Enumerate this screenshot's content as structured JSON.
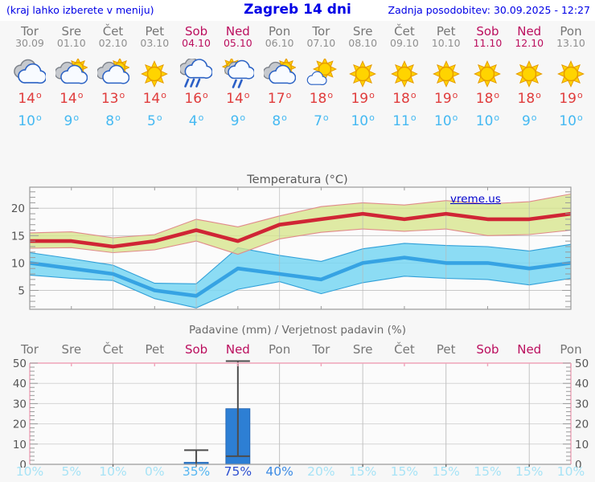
{
  "header": {
    "note": "(kraj lahko izberete v meniju)",
    "title": "Zagreb 14 dni",
    "updated": "Zadnja posodobitev: 30.09.2025 - 12:27"
  },
  "watermark": "vreme.us",
  "days": [
    {
      "name": "Tor",
      "date": "30.09",
      "weekend": false,
      "icon": "cloudy",
      "max_label": "14",
      "min_label": "10",
      "prob_label": "10%",
      "prob_color": "#a7e3f6"
    },
    {
      "name": "Sre",
      "date": "01.10",
      "weekend": false,
      "icon": "partly",
      "max_label": "14",
      "min_label": "9",
      "prob_label": "5%",
      "prob_color": "#a7e3f6"
    },
    {
      "name": "Čet",
      "date": "02.10",
      "weekend": false,
      "icon": "partly",
      "max_label": "13",
      "min_label": "8",
      "prob_label": "10%",
      "prob_color": "#a7e3f6"
    },
    {
      "name": "Pet",
      "date": "03.10",
      "weekend": false,
      "icon": "sunny",
      "max_label": "14",
      "min_label": "5",
      "prob_label": "0%",
      "prob_color": "#a7e3f6"
    },
    {
      "name": "Sob",
      "date": "04.10",
      "weekend": true,
      "icon": "rain",
      "max_label": "16",
      "min_label": "4",
      "prob_label": "35%",
      "prob_color": "#56b6f1"
    },
    {
      "name": "Ned",
      "date": "05.10",
      "weekend": true,
      "icon": "sun-rain",
      "max_label": "14",
      "min_label": "9",
      "prob_label": "75%",
      "prob_color": "#2c4fd0"
    },
    {
      "name": "Pon",
      "date": "06.10",
      "weekend": false,
      "icon": "partly",
      "max_label": "17",
      "min_label": "8",
      "prob_label": "40%",
      "prob_color": "#3d8be4"
    },
    {
      "name": "Tor",
      "date": "07.10",
      "weekend": false,
      "icon": "mostly-sunny",
      "max_label": "18",
      "min_label": "7",
      "prob_label": "20%",
      "prob_color": "#a7e3f6"
    },
    {
      "name": "Sre",
      "date": "08.10",
      "weekend": false,
      "icon": "sunny",
      "max_label": "19",
      "min_label": "10",
      "prob_label": "15%",
      "prob_color": "#a7e3f6"
    },
    {
      "name": "Čet",
      "date": "09.10",
      "weekend": false,
      "icon": "sunny",
      "max_label": "18",
      "min_label": "11",
      "prob_label": "15%",
      "prob_color": "#a7e3f6"
    },
    {
      "name": "Pet",
      "date": "10.10",
      "weekend": false,
      "icon": "sunny",
      "max_label": "19",
      "min_label": "10",
      "prob_label": "15%",
      "prob_color": "#a7e3f6"
    },
    {
      "name": "Sob",
      "date": "11.10",
      "weekend": true,
      "icon": "sunny",
      "max_label": "18",
      "min_label": "10",
      "prob_label": "15%",
      "prob_color": "#a7e3f6"
    },
    {
      "name": "Ned",
      "date": "12.10",
      "weekend": true,
      "icon": "sunny",
      "max_label": "18",
      "min_label": "9",
      "prob_label": "15%",
      "prob_color": "#a7e3f6"
    },
    {
      "name": "Pon",
      "date": "13.10",
      "weekend": false,
      "icon": "sunny",
      "max_label": "19",
      "min_label": "10",
      "prob_label": "10%",
      "prob_color": "#a7e3f6"
    }
  ],
  "chart_data": [
    {
      "type": "line",
      "title": "Temperatura (°C)",
      "ylim": [
        1.55,
        23.85
      ],
      "yticks": [
        5,
        10,
        15,
        20
      ],
      "grid_day_indices": [
        2,
        4,
        6,
        8,
        10,
        12
      ],
      "tick_day_indices": [
        1,
        3,
        5,
        7,
        9,
        11,
        13
      ],
      "legend_position": "none",
      "series": [
        {
          "name": "max temperature",
          "color": "#d02535",
          "band_color": "rgba(215,230,140,0.78)",
          "band_edge": "#e08a8a",
          "values": [
            14,
            14,
            13,
            14,
            16,
            14,
            17,
            18,
            19,
            18,
            19,
            18,
            18,
            19
          ],
          "band_hi": [
            15.5,
            15.7,
            14.6,
            15.2,
            18.0,
            16.6,
            18.6,
            20.3,
            21.0,
            20.6,
            21.4,
            20.8,
            21.2,
            22.6
          ],
          "band_lo": [
            12.7,
            12.8,
            11.9,
            12.4,
            14.0,
            11.6,
            14.4,
            15.6,
            16.2,
            15.8,
            16.2,
            15.0,
            15.2,
            16.0
          ]
        },
        {
          "name": "min temperature",
          "color": "#36a3e3",
          "band_color": "rgba(120,214,242,0.85)",
          "band_edge": "#2f9fd8",
          "values": [
            10,
            9,
            8,
            5,
            4,
            9,
            8,
            7,
            10,
            11,
            10,
            10,
            9,
            10
          ],
          "band_hi": [
            11.9,
            10.8,
            9.6,
            6.3,
            6.2,
            12.8,
            11.4,
            10.3,
            12.6,
            13.6,
            13.2,
            13.0,
            12.2,
            13.4
          ],
          "band_lo": [
            7.8,
            7.2,
            6.8,
            3.5,
            1.8,
            5.2,
            6.6,
            4.4,
            6.4,
            7.6,
            7.2,
            7.0,
            6.0,
            7.2
          ]
        }
      ]
    },
    {
      "type": "bar",
      "title": "Padavine (mm) / Verjetnost padavin (%)",
      "categories": [
        "Tor",
        "Sre",
        "Čet",
        "Pet",
        "Sob",
        "Ned",
        "Pon",
        "Tor",
        "Sre",
        "Čet",
        "Pet",
        "Sob",
        "Ned",
        "Pon"
      ],
      "ylim": [
        0,
        50
      ],
      "yticks": [
        0,
        10,
        20,
        30,
        40,
        50
      ],
      "grid_day_indices": [
        2,
        4,
        6,
        8,
        10,
        12
      ],
      "tick_day_indices": [
        1,
        3,
        5,
        7,
        9,
        11,
        13
      ],
      "values": [
        0,
        0,
        0,
        0,
        1,
        27.5,
        0,
        0,
        0,
        0,
        0,
        0,
        0,
        0
      ],
      "whiskers": [
        null,
        null,
        null,
        null,
        {
          "lo": 0,
          "hi": 7
        },
        {
          "lo": 4,
          "hi": 51
        },
        null,
        null,
        null,
        null,
        null,
        null,
        null,
        null
      ],
      "probabilities_pct": [
        10,
        5,
        10,
        0,
        35,
        75,
        40,
        20,
        15,
        15,
        15,
        15,
        15,
        10
      ],
      "bar_color": "#2d7fd4",
      "whisker_color": "#4d4d4d",
      "frame_color": "#f0a3b8"
    }
  ],
  "colors": {
    "header_blue": "#0000e6",
    "weekend": "#bb0e5e",
    "weekday": "#767676",
    "max_temp": "#e03c3c",
    "min_temp": "#45b9f2",
    "grid": "#c9c9c9",
    "frame": "#9a9a9a",
    "plot_bg": "#fbfbfb"
  }
}
